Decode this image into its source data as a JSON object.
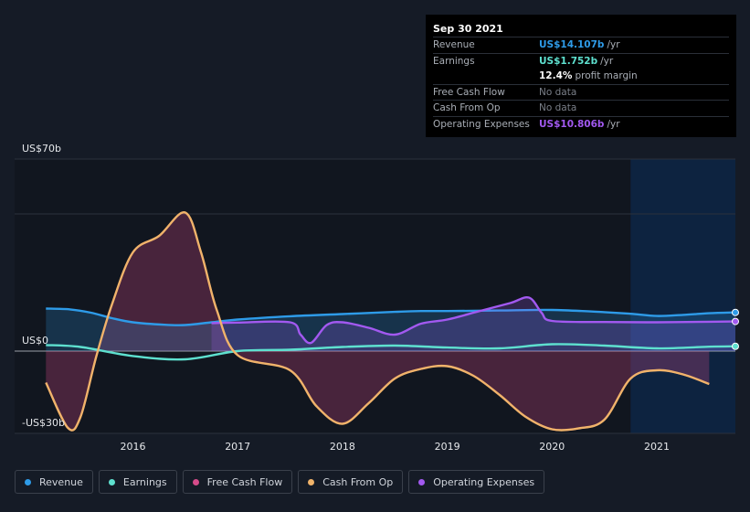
{
  "tooltip": {
    "date": "Sep 30 2021",
    "rows": [
      {
        "label": "Revenue",
        "value": "US$14.107b",
        "unit": "/yr",
        "color": "#2e9be8"
      },
      {
        "label": "Earnings",
        "value": "US$1.752b",
        "unit": "/yr",
        "color": "#5ee0cf"
      },
      {
        "label": "",
        "value": "12.4%",
        "unit": "profit margin",
        "color": "#ffffff"
      },
      {
        "label": "Free Cash Flow",
        "value": "No data",
        "unit": "",
        "color": "#7a7f88"
      },
      {
        "label": "Cash From Op",
        "value": "No data",
        "unit": "",
        "color": "#7a7f88"
      },
      {
        "label": "Operating Expenses",
        "value": "US$10.806b",
        "unit": "/yr",
        "color": "#a259f0"
      }
    ]
  },
  "legend": [
    {
      "label": "Revenue",
      "color": "#2e9be8"
    },
    {
      "label": "Earnings",
      "color": "#5ee0cf"
    },
    {
      "label": "Free Cash Flow",
      "color": "#d64b8a"
    },
    {
      "label": "Cash From Op",
      "color": "#f0b36a"
    },
    {
      "label": "Operating Expenses",
      "color": "#a259f0"
    }
  ],
  "chart_data": {
    "type": "line",
    "ylim": [
      -30,
      70
    ],
    "ytick_labels": [
      {
        "value": 70,
        "label": "US$70b"
      },
      {
        "value": 0,
        "label": "US$0"
      },
      {
        "value": -30,
        "label": "-US$30b"
      }
    ],
    "xlim": [
      2015.15,
      2021.75
    ],
    "xtick_labels": [
      {
        "value": 2016,
        "label": "2016"
      },
      {
        "value": 2017,
        "label": "2017"
      },
      {
        "value": 2018,
        "label": "2018"
      },
      {
        "value": 2019,
        "label": "2019"
      },
      {
        "value": 2020,
        "label": "2020"
      },
      {
        "value": 2021,
        "label": "2021"
      }
    ],
    "forecast_start": 2020.75,
    "series": [
      {
        "name": "Revenue",
        "color": "#2e9be8",
        "fill": true,
        "marker": true,
        "points": [
          [
            2015.17,
            15.5
          ],
          [
            2015.4,
            15.2
          ],
          [
            2015.6,
            14
          ],
          [
            2015.8,
            12
          ],
          [
            2016,
            10.5
          ],
          [
            2016.3,
            9.6
          ],
          [
            2016.5,
            9.5
          ],
          [
            2016.75,
            10.5
          ],
          [
            2017,
            11.5
          ],
          [
            2017.5,
            12.7
          ],
          [
            2018,
            13.5
          ],
          [
            2018.5,
            14.3
          ],
          [
            2018.75,
            14.6
          ],
          [
            2019,
            14.6
          ],
          [
            2019.5,
            14.8
          ],
          [
            2020,
            15
          ],
          [
            2020.5,
            14.2
          ],
          [
            2020.75,
            13.6
          ],
          [
            2021,
            12.8
          ],
          [
            2021.25,
            13.2
          ],
          [
            2021.5,
            13.8
          ],
          [
            2021.75,
            14.1
          ]
        ]
      },
      {
        "name": "Operating Expenses",
        "color": "#a259f0",
        "fill": true,
        "marker": true,
        "points": [
          [
            2016.75,
            10.2
          ],
          [
            2017,
            10.4
          ],
          [
            2017.5,
            10.5
          ],
          [
            2017.6,
            6
          ],
          [
            2017.7,
            3
          ],
          [
            2017.85,
            9.5
          ],
          [
            2018,
            10.5
          ],
          [
            2018.25,
            8.5
          ],
          [
            2018.5,
            6
          ],
          [
            2018.75,
            10
          ],
          [
            2019,
            11.5
          ],
          [
            2019.3,
            14.5
          ],
          [
            2019.6,
            17.5
          ],
          [
            2019.78,
            19.5
          ],
          [
            2019.9,
            14
          ],
          [
            2020,
            11
          ],
          [
            2020.5,
            10.6
          ],
          [
            2021,
            10.5
          ],
          [
            2021.5,
            10.7
          ],
          [
            2021.75,
            10.8
          ]
        ]
      },
      {
        "name": "Earnings",
        "color": "#5ee0cf",
        "fill": false,
        "marker": true,
        "points": [
          [
            2015.17,
            2.2
          ],
          [
            2015.5,
            1.5
          ],
          [
            2016,
            -1.8
          ],
          [
            2016.5,
            -3
          ],
          [
            2017,
            0
          ],
          [
            2017.5,
            0.5
          ],
          [
            2018,
            1.5
          ],
          [
            2018.5,
            2
          ],
          [
            2019,
            1.3
          ],
          [
            2019.5,
            1
          ],
          [
            2020,
            2.5
          ],
          [
            2020.5,
            2
          ],
          [
            2021,
            1
          ],
          [
            2021.5,
            1.6
          ],
          [
            2021.75,
            1.75
          ]
        ]
      },
      {
        "name": "Free Cash Flow",
        "color": "#d64b8a",
        "fill": true,
        "marker": false,
        "points": [
          [
            2015.17,
            -11.5
          ],
          [
            2015.38,
            -28
          ],
          [
            2015.5,
            -24
          ],
          [
            2015.65,
            -2
          ],
          [
            2015.8,
            17
          ],
          [
            2016,
            36
          ],
          [
            2016.25,
            42
          ],
          [
            2016.5,
            50.5
          ],
          [
            2016.65,
            36
          ],
          [
            2016.8,
            15
          ],
          [
            2017,
            -1.5
          ],
          [
            2017.5,
            -7
          ],
          [
            2017.75,
            -20
          ],
          [
            2018,
            -26.5
          ],
          [
            2018.25,
            -19
          ],
          [
            2018.5,
            -10
          ],
          [
            2018.75,
            -6.5
          ],
          [
            2019,
            -5.5
          ],
          [
            2019.25,
            -9
          ],
          [
            2019.5,
            -16
          ],
          [
            2019.75,
            -24
          ],
          [
            2020,
            -28.5
          ],
          [
            2020.25,
            -28.2
          ],
          [
            2020.5,
            -25
          ],
          [
            2020.75,
            -10
          ],
          [
            2021,
            -7
          ],
          [
            2021.25,
            -8.5
          ],
          [
            2021.5,
            -12
          ]
        ]
      },
      {
        "name": "Cash From Op",
        "color": "#f0b36a",
        "fill": false,
        "marker": false,
        "points": [
          [
            2015.17,
            -11.5
          ],
          [
            2015.38,
            -28
          ],
          [
            2015.5,
            -24
          ],
          [
            2015.65,
            -2
          ],
          [
            2015.8,
            17
          ],
          [
            2016,
            36
          ],
          [
            2016.25,
            42
          ],
          [
            2016.5,
            50.5
          ],
          [
            2016.65,
            36
          ],
          [
            2016.8,
            15
          ],
          [
            2017,
            -1.5
          ],
          [
            2017.5,
            -7
          ],
          [
            2017.75,
            -20
          ],
          [
            2018,
            -26.5
          ],
          [
            2018.25,
            -19
          ],
          [
            2018.5,
            -10
          ],
          [
            2018.75,
            -6.5
          ],
          [
            2019,
            -5.5
          ],
          [
            2019.25,
            -9
          ],
          [
            2019.5,
            -16
          ],
          [
            2019.75,
            -24
          ],
          [
            2020,
            -28.5
          ],
          [
            2020.25,
            -28.2
          ],
          [
            2020.5,
            -25
          ],
          [
            2020.75,
            -10
          ],
          [
            2021,
            -7
          ],
          [
            2021.25,
            -8.5
          ],
          [
            2021.5,
            -12
          ]
        ]
      }
    ]
  }
}
